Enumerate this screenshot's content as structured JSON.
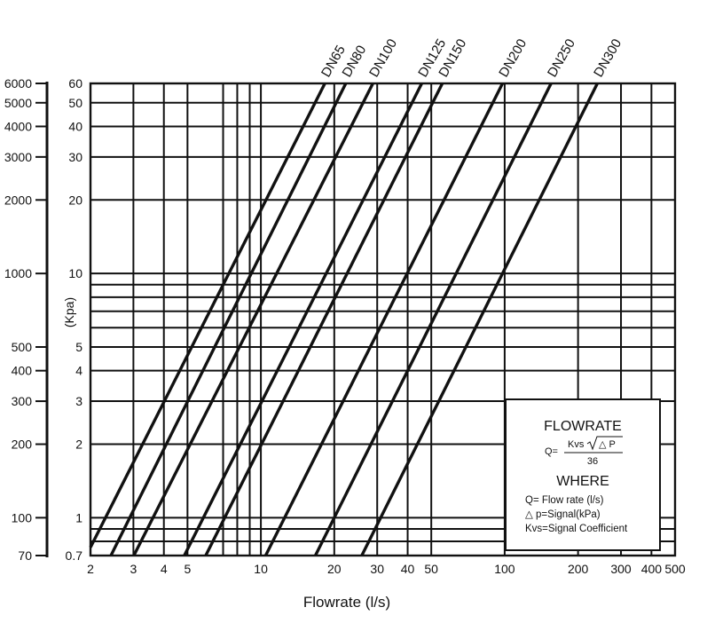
{
  "chart_data": {
    "type": "line",
    "title": "",
    "xlabel": "Flowrate (l/s)",
    "ylabel": "(Kpa)",
    "x_scale": "log",
    "y_scale": "log",
    "xlim": [
      2,
      500
    ],
    "ylim": [
      0.7,
      60
    ],
    "grid": true,
    "x_ticks": [
      {
        "v": 2,
        "label": "2"
      },
      {
        "v": 3,
        "label": "3"
      },
      {
        "v": 4,
        "label": "4"
      },
      {
        "v": 5,
        "label": "5"
      },
      {
        "v": 10,
        "label": "10"
      },
      {
        "v": 20,
        "label": "20"
      },
      {
        "v": 30,
        "label": "30"
      },
      {
        "v": 40,
        "label": "40"
      },
      {
        "v": 50,
        "label": "50"
      },
      {
        "v": 100,
        "label": "100"
      },
      {
        "v": 200,
        "label": "200"
      },
      {
        "v": 300,
        "label": "300"
      },
      {
        "v": 400,
        "label": "400"
      },
      {
        "v": 500,
        "label": "500"
      }
    ],
    "x_grid": [
      2,
      3,
      4,
      5,
      7,
      8,
      9,
      10,
      20,
      30,
      40,
      50,
      100,
      200,
      300,
      400
    ],
    "y_ticks": [
      {
        "v": 0.7,
        "label": "0.7"
      },
      {
        "v": 1,
        "label": "1"
      },
      {
        "v": 2,
        "label": "2"
      },
      {
        "v": 3,
        "label": "3"
      },
      {
        "v": 4,
        "label": "4"
      },
      {
        "v": 5,
        "label": "5"
      },
      {
        "v": 10,
        "label": "10"
      },
      {
        "v": 20,
        "label": "20"
      },
      {
        "v": 30,
        "label": "30"
      },
      {
        "v": 40,
        "label": "40"
      },
      {
        "v": 50,
        "label": "50"
      },
      {
        "v": 60,
        "label": "60"
      }
    ],
    "y_grid": [
      0.7,
      0.8,
      0.9,
      1,
      2,
      3,
      4,
      5,
      6,
      7,
      8,
      9,
      10,
      20,
      30,
      40,
      50,
      60
    ],
    "secondary_y_ticks": [
      {
        "v": 0.7,
        "label": "70"
      },
      {
        "v": 1,
        "label": "100"
      },
      {
        "v": 2,
        "label": "200"
      },
      {
        "v": 3,
        "label": "300"
      },
      {
        "v": 4,
        "label": "400"
      },
      {
        "v": 5,
        "label": "500"
      },
      {
        "v": 10,
        "label": "1000"
      },
      {
        "v": 20,
        "label": "2000"
      },
      {
        "v": 30,
        "label": "3000"
      },
      {
        "v": 40,
        "label": "4000"
      },
      {
        "v": 50,
        "label": "5000"
      },
      {
        "v": 60,
        "label": "6000"
      }
    ],
    "series": [
      {
        "name": "DN65",
        "kvs_flow_at_1": 2.3,
        "points": [
          [
            2.3,
            1
          ],
          [
            18.3,
            60
          ]
        ]
      },
      {
        "name": "DN80",
        "kvs_flow_at_1": 2.9,
        "points": [
          [
            2.9,
            1
          ],
          [
            22.3,
            60
          ]
        ]
      },
      {
        "name": "DN100",
        "kvs_flow_at_1": 3.6,
        "points": [
          [
            3.6,
            1
          ],
          [
            28.8,
            60
          ]
        ]
      },
      {
        "name": "DN125",
        "kvs_flow_at_1": 5.8,
        "points": [
          [
            5.8,
            1
          ],
          [
            45.7,
            60
          ]
        ]
      },
      {
        "name": "DN150",
        "kvs_flow_at_1": 7.1,
        "points": [
          [
            7.1,
            1
          ],
          [
            55.5,
            60
          ]
        ]
      },
      {
        "name": "DN200",
        "kvs_flow_at_1": 12.5,
        "points": [
          [
            12.5,
            1
          ],
          [
            98,
            60
          ]
        ]
      },
      {
        "name": "DN250",
        "kvs_flow_at_1": 20,
        "points": [
          [
            20,
            1
          ],
          [
            155,
            60
          ]
        ]
      },
      {
        "name": "DN300",
        "kvs_flow_at_1": 31,
        "points": [
          [
            31,
            1
          ],
          [
            240,
            60
          ]
        ]
      }
    ],
    "legend_box": {
      "title": "FLOWRATE",
      "formula_lhs": "Q=",
      "formula_num_a": "Kvs",
      "formula_num_b": "△ P",
      "formula_den": "36",
      "where": "WHERE",
      "lines": [
        "Q= Flow rate (l/s)",
        "△ p=Signal(kPa)",
        "Kvs=Signal Coefficient"
      ]
    }
  }
}
